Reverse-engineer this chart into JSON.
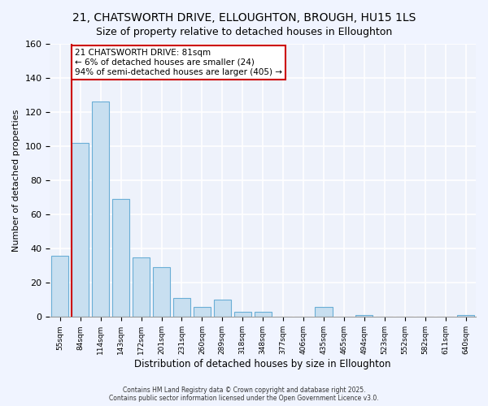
{
  "title": "21, CHATSWORTH DRIVE, ELLOUGHTON, BROUGH, HU15 1LS",
  "subtitle": "Size of property relative to detached houses in Elloughton",
  "xlabel": "Distribution of detached houses by size in Elloughton",
  "ylabel": "Number of detached properties",
  "bar_labels": [
    "55sqm",
    "84sqm",
    "114sqm",
    "143sqm",
    "172sqm",
    "201sqm",
    "231sqm",
    "260sqm",
    "289sqm",
    "318sqm",
    "348sqm",
    "377sqm",
    "406sqm",
    "435sqm",
    "465sqm",
    "494sqm",
    "523sqm",
    "552sqm",
    "582sqm",
    "611sqm",
    "640sqm"
  ],
  "bar_values": [
    36,
    102,
    126,
    69,
    35,
    29,
    11,
    6,
    10,
    3,
    3,
    0,
    0,
    6,
    0,
    1,
    0,
    0,
    0,
    0,
    1
  ],
  "bar_color": "#c8dff0",
  "bar_edge_color": "#6aaed6",
  "marker_line_color": "#cc0000",
  "annotation_line1": "21 CHATSWORTH DRIVE: 81sqm",
  "annotation_line2": "← 6% of detached houses are smaller (24)",
  "annotation_line3": "94% of semi-detached houses are larger (405) →",
  "annotation_box_color": "#ffffff",
  "annotation_box_edge": "#cc0000",
  "ylim": [
    0,
    160
  ],
  "yticks": [
    0,
    20,
    40,
    60,
    80,
    100,
    120,
    140,
    160
  ],
  "footer_line1": "Contains HM Land Registry data © Crown copyright and database right 2025.",
  "footer_line2": "Contains public sector information licensed under the Open Government Licence v3.0.",
  "bg_color": "#f0f4ff",
  "plot_bg_color": "#eef2fb",
  "grid_color": "#ffffff",
  "title_fontsize": 10,
  "subtitle_fontsize": 9
}
